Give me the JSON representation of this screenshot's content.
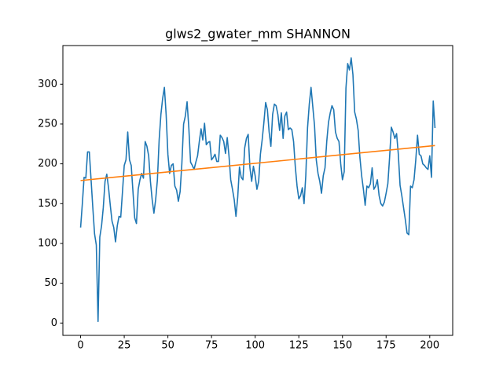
{
  "chart_data": {
    "type": "line",
    "title": "glws2_gwater_mm SHANNON",
    "x": [
      0,
      1,
      2,
      3,
      4,
      5,
      6,
      7,
      8,
      9,
      10,
      11,
      12,
      13,
      14,
      15,
      16,
      17,
      18,
      19,
      20,
      21,
      22,
      23,
      24,
      25,
      26,
      27,
      28,
      29,
      30,
      31,
      32,
      33,
      34,
      35,
      36,
      37,
      38,
      39,
      40,
      41,
      42,
      43,
      44,
      45,
      46,
      47,
      48,
      49,
      50,
      51,
      52,
      53,
      54,
      55,
      56,
      57,
      58,
      59,
      60,
      61,
      62,
      63,
      64,
      65,
      66,
      67,
      68,
      69,
      70,
      71,
      72,
      73,
      74,
      75,
      76,
      77,
      78,
      79,
      80,
      81,
      82,
      83,
      84,
      85,
      86,
      87,
      88,
      89,
      90,
      91,
      92,
      93,
      94,
      95,
      96,
      97,
      98,
      99,
      100,
      101,
      102,
      103,
      104,
      105,
      106,
      107,
      108,
      109,
      110,
      111,
      112,
      113,
      114,
      115,
      116,
      117,
      118,
      119,
      120,
      121,
      122,
      123,
      124,
      125,
      126,
      127,
      128,
      129,
      130,
      131,
      132,
      133,
      134,
      135,
      136,
      137,
      138,
      139,
      140,
      141,
      142,
      143,
      144,
      145,
      146,
      147,
      148,
      149,
      150,
      151,
      152,
      153,
      154,
      155,
      156,
      157,
      158,
      159,
      160,
      161,
      162,
      163,
      164,
      165,
      166,
      167,
      168,
      169,
      170,
      171,
      172,
      173,
      174,
      175,
      176,
      177,
      178,
      179,
      180,
      181,
      182,
      183,
      184,
      185,
      186,
      187,
      188,
      189,
      190,
      191,
      192,
      193,
      194,
      195,
      196,
      197,
      198,
      199,
      200,
      201,
      202,
      203
    ],
    "series": [
      {
        "color": "#1f77b4",
        "values": [
          120,
          150,
          183,
          182,
          215,
          215,
          180,
          145,
          112,
          98,
          2,
          108,
          122,
          145,
          178,
          187,
          170,
          148,
          128,
          120,
          102,
          122,
          134,
          133,
          165,
          198,
          205,
          240,
          205,
          198,
          165,
          132,
          125,
          168,
          180,
          188,
          182,
          228,
          222,
          210,
          178,
          155,
          138,
          155,
          180,
          230,
          262,
          282,
          296,
          262,
          212,
          188,
          198,
          200,
          172,
          167,
          153,
          165,
          200,
          250,
          260,
          278,
          245,
          202,
          198,
          193,
          202,
          210,
          228,
          244,
          230,
          251,
          224,
          227,
          228,
          205,
          208,
          212,
          203,
          203,
          236,
          233,
          228,
          213,
          233,
          210,
          180,
          168,
          155,
          134,
          158,
          196,
          183,
          180,
          220,
          232,
          237,
          195,
          178,
          197,
          185,
          168,
          178,
          212,
          230,
          252,
          277,
          268,
          240,
          222,
          262,
          275,
          273,
          262,
          242,
          264,
          232,
          260,
          265,
          243,
          245,
          243,
          228,
          196,
          172,
          156,
          160,
          170,
          150,
          185,
          245,
          275,
          296,
          272,
          248,
          205,
          188,
          178,
          163,
          185,
          195,
          228,
          252,
          264,
          273,
          268,
          240,
          232,
          228,
          200,
          180,
          190,
          295,
          326,
          318,
          333,
          312,
          265,
          256,
          242,
          208,
          185,
          168,
          148,
          172,
          170,
          175,
          195,
          168,
          172,
          180,
          160,
          150,
          147,
          152,
          163,
          175,
          208,
          246,
          240,
          232,
          238,
          212,
          173,
          160,
          145,
          130,
          113,
          111,
          172,
          170,
          180,
          205,
          236,
          212,
          210,
          200,
          198,
          195,
          193,
          210,
          183,
          279,
          245
        ]
      },
      {
        "color": "#ff7f0e",
        "x": [
          0,
          203
        ],
        "values": [
          179,
          223
        ]
      }
    ],
    "xlim": [
      -10.15,
      213.15
    ],
    "xticks": [
      0,
      25,
      50,
      75,
      100,
      125,
      150,
      175,
      200
    ],
    "ylim": [
      -15.5,
      348.6
    ],
    "yticks": [
      0,
      50,
      100,
      150,
      200,
      250,
      300
    ]
  }
}
